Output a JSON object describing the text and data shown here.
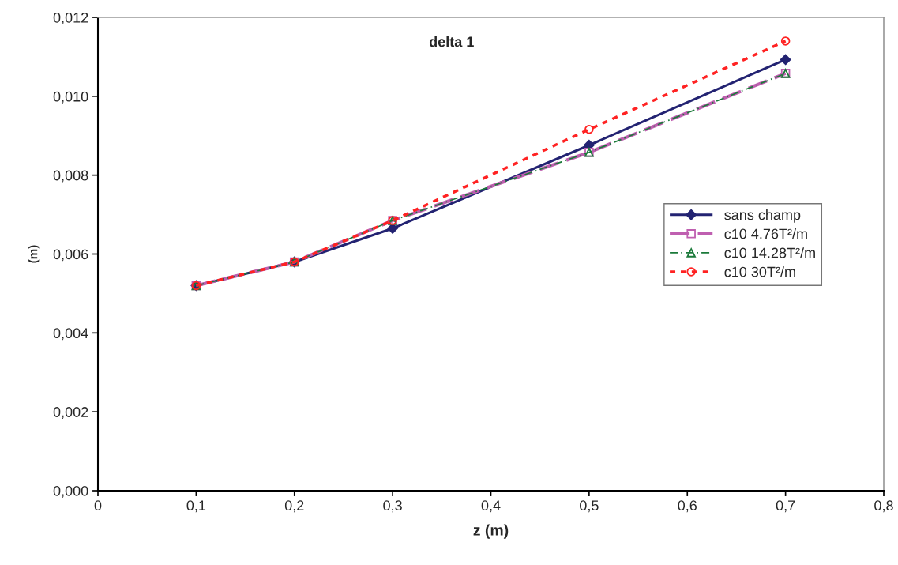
{
  "chart_data": {
    "type": "line",
    "title": "delta 1",
    "xlabel": "z (m)",
    "ylabel": "(m)",
    "x": [
      0.1,
      0.2,
      0.3,
      0.5,
      0.7
    ],
    "series": [
      {
        "name": "sans champ",
        "color": "#232372",
        "values": [
          0.0052,
          0.0058,
          0.00665,
          0.00876,
          0.01093
        ],
        "marker": "diamond",
        "line_style": "solid"
      },
      {
        "name": "c10 4.76T²/m",
        "color": "#bf5fb0",
        "values": [
          0.0052,
          0.0058,
          0.00685,
          0.00858,
          0.01058
        ],
        "marker": "square",
        "line_style": "dashed"
      },
      {
        "name": "c10 14.28T²/m",
        "color": "#1b7a3a",
        "values": [
          0.0052,
          0.0058,
          0.00685,
          0.00858,
          0.01058
        ],
        "marker": "triangle",
        "line_style": "dashed"
      },
      {
        "name": "c10 30T²/m",
        "color": "#ff2222",
        "values": [
          0.0052,
          0.0058,
          0.00685,
          0.00916,
          0.0114
        ],
        "marker": "circle",
        "line_style": "dotted"
      }
    ],
    "xlim": [
      0,
      0.8
    ],
    "xticks": [
      0,
      {
        "value": 0.1,
        "label": "0,1"
      },
      {
        "value": 0.2,
        "label": "0,2"
      },
      {
        "value": 0.3,
        "label": "0,3"
      },
      {
        "value": 0.4,
        "label": "0,4"
      },
      {
        "value": 0.5,
        "label": "0,5"
      },
      {
        "value": 0.6,
        "label": "0,6"
      },
      {
        "value": 0.7,
        "label": "0,7"
      },
      {
        "value": 0.8,
        "label": "0,8"
      }
    ],
    "ylim": [
      0,
      0.012
    ],
    "yticks": [
      {
        "value": 0,
        "label": "0,000"
      },
      {
        "value": 0.002,
        "label": "0,002"
      },
      {
        "value": 0.004,
        "label": "0,004"
      },
      {
        "value": 0.006,
        "label": "0,006"
      },
      {
        "value": 0.008,
        "label": "0,008"
      },
      {
        "value": 0.01,
        "label": "0,010"
      },
      {
        "value": 0.012,
        "label": "0,012"
      }
    ],
    "grid": false,
    "legend": "right"
  }
}
